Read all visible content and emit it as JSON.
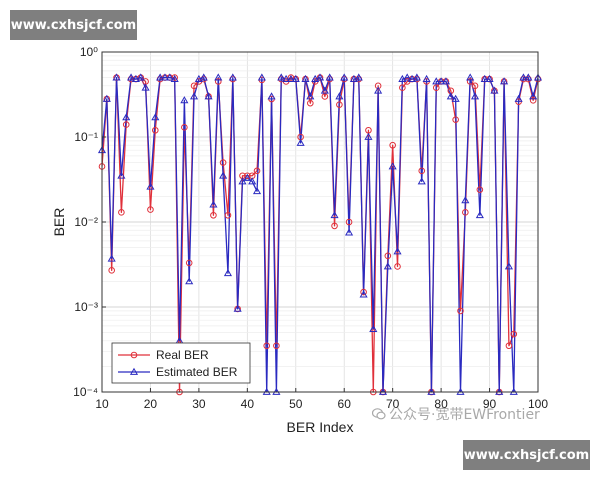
{
  "watermark_top": "www.cxhsjcf.com",
  "watermark_bottom": "www.cxhsjcf.com",
  "overlay_text": "公众号·宽带EWFrontier",
  "chart_data": {
    "type": "line",
    "yscale": "log",
    "xlabel": "BER Index",
    "ylabel": "BER",
    "xlim": [
      10,
      100
    ],
    "ylim": [
      0.0001,
      1
    ],
    "grid": true,
    "legend_position": "bottom-left",
    "x_ticks": [
      10,
      20,
      30,
      40,
      50,
      60,
      70,
      80,
      90,
      100
    ],
    "x_tick_labels": [
      "10",
      "20",
      "30",
      "40",
      "50",
      "60",
      "70",
      "80",
      "90",
      "100"
    ],
    "y_ticks": [
      0.0001,
      0.001,
      0.01,
      0.1,
      1
    ],
    "y_tick_labels": [
      "10⁻⁴",
      "10⁻³",
      "10⁻²",
      "10⁻¹",
      "10⁰"
    ],
    "x": [
      10,
      11,
      12,
      13,
      14,
      15,
      16,
      17,
      18,
      19,
      20,
      21,
      22,
      23,
      24,
      25,
      26,
      27,
      28,
      29,
      30,
      31,
      32,
      33,
      34,
      35,
      36,
      37,
      38,
      39,
      40,
      41,
      42,
      43,
      44,
      45,
      46,
      47,
      48,
      49,
      50,
      51,
      52,
      53,
      54,
      55,
      56,
      57,
      58,
      59,
      60,
      61,
      62,
      63,
      64,
      65,
      66,
      67,
      68,
      69,
      70,
      71,
      72,
      73,
      74,
      75,
      76,
      77,
      78,
      79,
      80,
      81,
      82,
      83,
      84,
      85,
      86,
      87,
      88,
      89,
      90,
      91,
      92,
      93,
      94,
      95,
      96,
      97,
      98,
      99,
      100
    ],
    "series": [
      {
        "name": "Real BER",
        "color": "#e0303a",
        "marker": "circle",
        "values": [
          0.045,
          0.28,
          0.0027,
          0.5,
          0.013,
          0.14,
          0.48,
          0.48,
          0.5,
          0.45,
          0.014,
          0.12,
          0.48,
          0.5,
          0.5,
          0.5,
          0.0001,
          0.13,
          0.0033,
          0.4,
          0.45,
          0.48,
          0.3,
          0.012,
          0.45,
          0.05,
          0.012,
          0.48,
          0.00095,
          0.035,
          0.035,
          0.035,
          0.04,
          0.47,
          0.00035,
          0.28,
          0.00035,
          0.48,
          0.45,
          0.5,
          0.48,
          0.1,
          0.48,
          0.25,
          0.45,
          0.5,
          0.3,
          0.48,
          0.009,
          0.24,
          0.48,
          0.01,
          0.48,
          0.48,
          0.0015,
          0.12,
          0.0001,
          0.4,
          0.0001,
          0.004,
          0.08,
          0.003,
          0.38,
          0.45,
          0.48,
          0.48,
          0.04,
          0.45,
          0.0001,
          0.38,
          0.45,
          0.45,
          0.35,
          0.16,
          0.0009,
          0.013,
          0.45,
          0.4,
          0.024,
          0.48,
          0.48,
          0.35,
          0.0001,
          0.45,
          0.00035,
          0.00048,
          0.26,
          0.48,
          0.48,
          0.27,
          0.48
        ]
      },
      {
        "name": "Estimated BER",
        "color": "#2a2ac0",
        "marker": "triangle",
        "values": [
          0.07,
          0.28,
          0.0037,
          0.5,
          0.035,
          0.17,
          0.5,
          0.48,
          0.5,
          0.38,
          0.026,
          0.17,
          0.5,
          0.5,
          0.5,
          0.48,
          0.0004,
          0.27,
          0.002,
          0.3,
          0.48,
          0.5,
          0.3,
          0.016,
          0.5,
          0.035,
          0.0025,
          0.5,
          0.00095,
          0.03,
          0.033,
          0.03,
          0.023,
          0.5,
          0.0001,
          0.3,
          0.0001,
          0.5,
          0.48,
          0.48,
          0.48,
          0.085,
          0.48,
          0.3,
          0.48,
          0.5,
          0.35,
          0.5,
          0.012,
          0.3,
          0.5,
          0.0075,
          0.48,
          0.5,
          0.0014,
          0.1,
          0.00055,
          0.35,
          0.0001,
          0.003,
          0.045,
          0.0045,
          0.48,
          0.5,
          0.48,
          0.5,
          0.03,
          0.48,
          0.0001,
          0.45,
          0.45,
          0.45,
          0.3,
          0.28,
          0.0001,
          0.018,
          0.5,
          0.3,
          0.012,
          0.48,
          0.48,
          0.35,
          0.0001,
          0.45,
          0.003,
          0.0001,
          0.28,
          0.5,
          0.5,
          0.3,
          0.5
        ]
      }
    ]
  }
}
